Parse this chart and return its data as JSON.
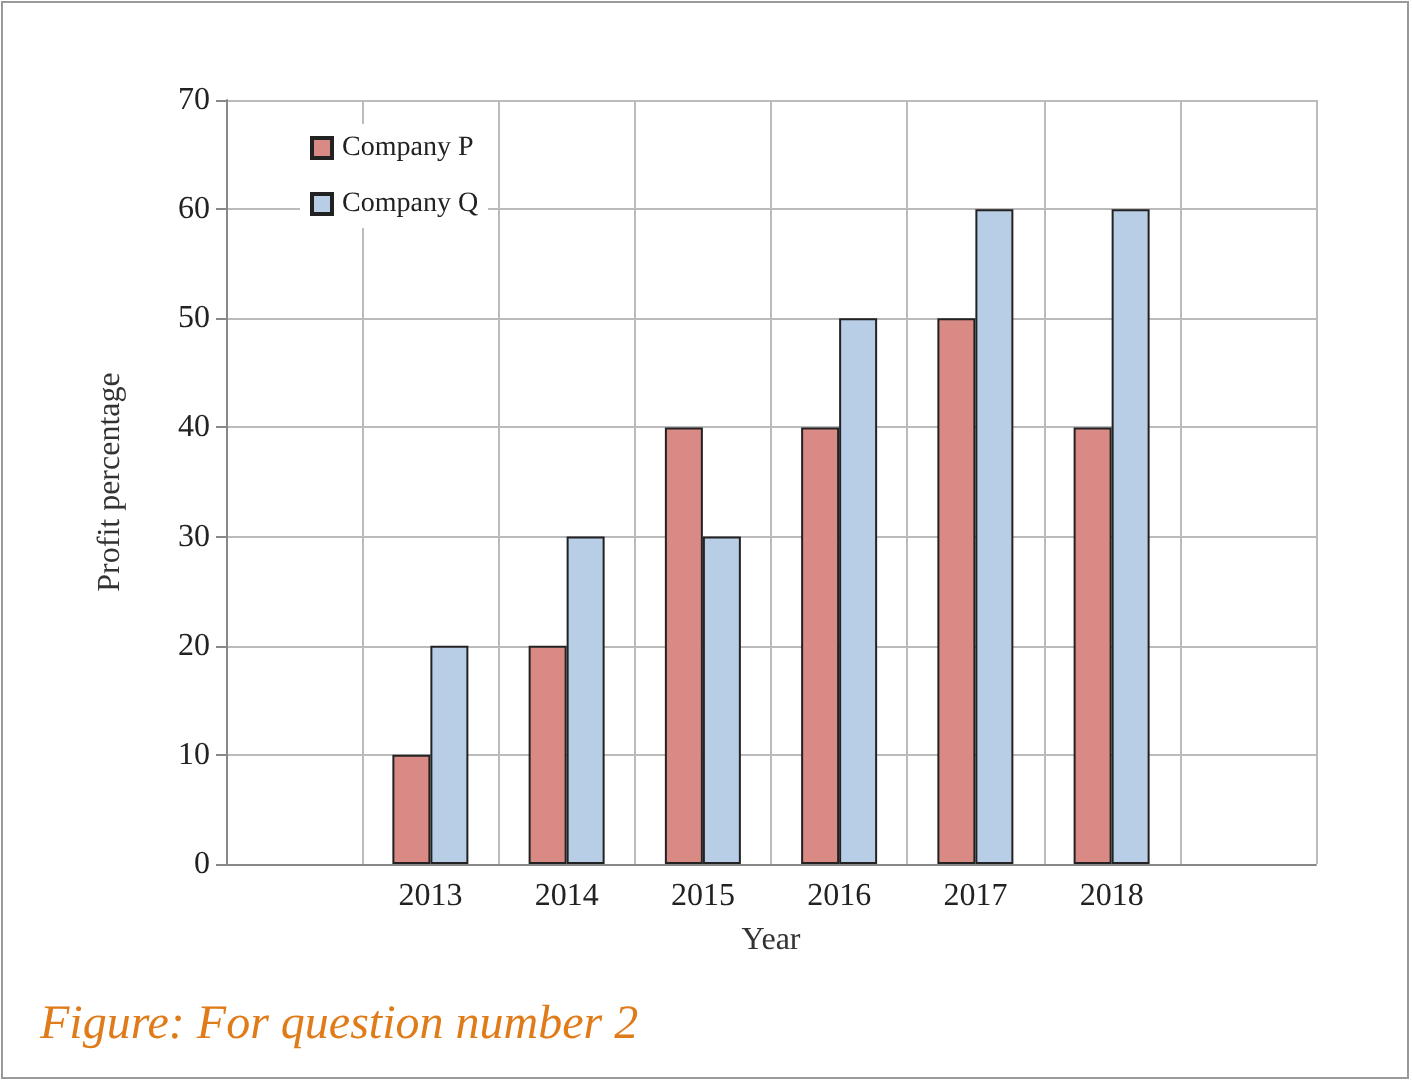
{
  "chart_data": {
    "type": "bar",
    "xlabel": "Year",
    "ylabel": "Profit percentage",
    "categories": [
      null,
      "2013",
      "2014",
      "2015",
      "2016",
      "2017",
      "2018",
      null
    ],
    "series": [
      {
        "name": "Company P",
        "color": "#d98a84",
        "values": [
          null,
          10,
          20,
          40,
          40,
          50,
          40,
          null
        ]
      },
      {
        "name": "Company Q",
        "color": "#b8cde6",
        "values": [
          null,
          20,
          30,
          30,
          50,
          60,
          60,
          null
        ]
      }
    ],
    "ylim": [
      0,
      70
    ],
    "yticks": [
      0,
      10,
      20,
      30,
      40,
      50,
      60,
      70
    ],
    "grid": true,
    "legend": "top left",
    "annotations": [
      "Figure: For question number 2"
    ]
  }
}
